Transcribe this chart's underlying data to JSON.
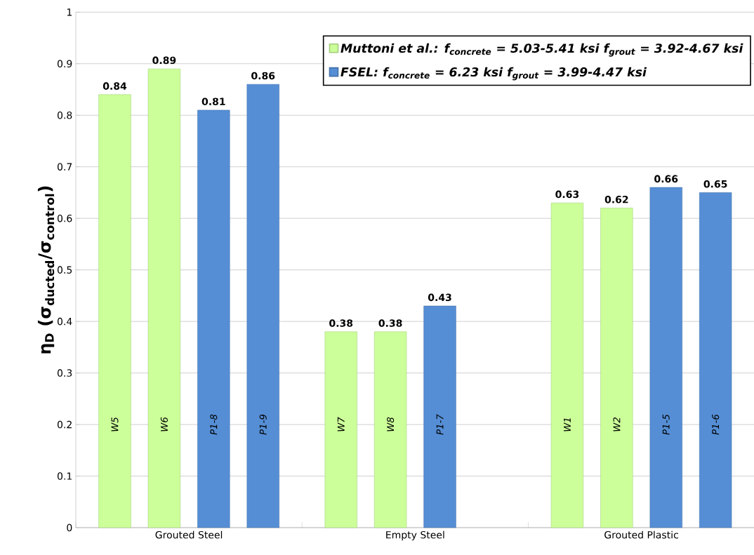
{
  "chart_data": {
    "type": "bar",
    "ylabel": "η$_{D}$ (σ$_{ducted}$/σ$_{control}$)",
    "categories": [
      "Grouted Steel",
      "Empty Steel",
      "Grouted Plastic"
    ],
    "series": [
      {
        "name": "Muttoni et al.: f$_{concrete}$ = 5.03-5.41 ksi f$_{grout}$ = 3.92-4.67 ksi",
        "color": "#ccff99",
        "values": [
          0.84,
          0.38,
          0.63
        ]
      },
      {
        "color": "#ccff99",
        "values": [
          0.89,
          0.38,
          0.62
        ]
      },
      {
        "name": "FSEL: f$_{concrete}$ = 6.23 ksi f$_{grout}$ = 3.99-4.47 ksi",
        "color": "#558ed5",
        "values": [
          0.81,
          0.43,
          0.66
        ]
      },
      {
        "color": "#558ed5",
        "values": [
          0.86,
          null,
          0.65
        ]
      }
    ],
    "ylim": [
      0,
      1
    ],
    "yticks": [
      0,
      0.1,
      0.2,
      0.3,
      0.4,
      0.5,
      0.6,
      0.7,
      0.8,
      0.9,
      1
    ],
    "grid": "y",
    "legend": "top right",
    "data_labels": true,
    "annotations": [
      "W5",
      "W6",
      "P1-8",
      "P1-9",
      "W7",
      "W8",
      "P1-7",
      "W1",
      "W2",
      "P1-5",
      "P1-6"
    ]
  }
}
